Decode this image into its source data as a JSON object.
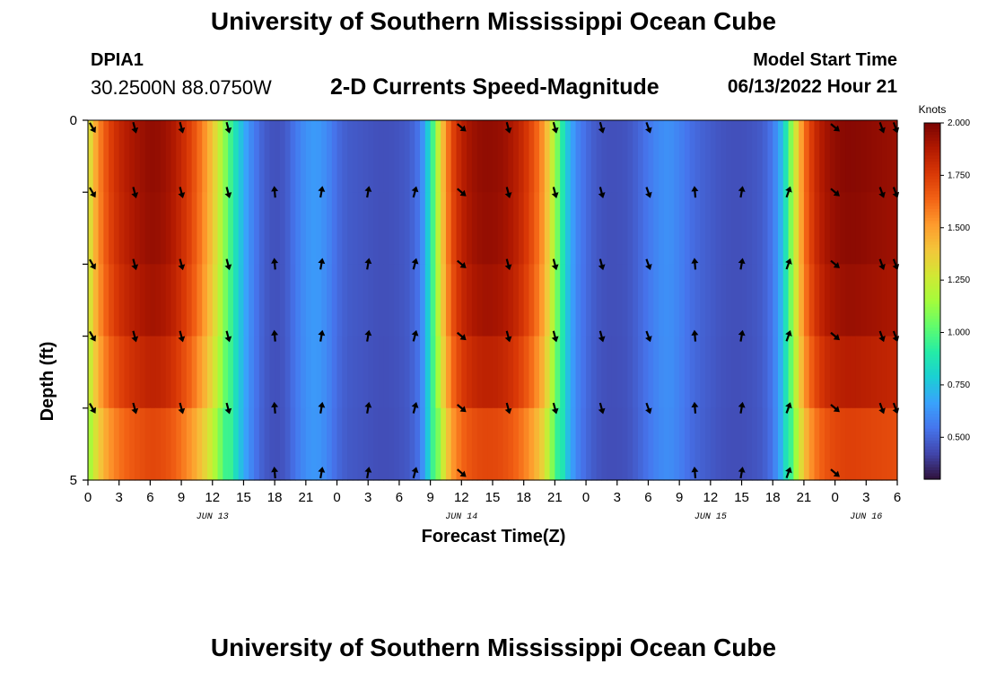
{
  "header": {
    "title": "University of Southern Mississippi Ocean Cube",
    "station_id": "DPIA1",
    "coordinates": "30.2500N  88.0750W",
    "chart_title": "2-D Currents Speed-Magnitude",
    "model_start_label": "Model Start Time",
    "model_start_value": "06/13/2022 Hour 21"
  },
  "footer": {
    "title": "University of Southern Mississippi Ocean Cube"
  },
  "chart_data": {
    "type": "heatmap",
    "title": "2-D Currents Speed-Magnitude",
    "xlabel": "Forecast Time(Z)",
    "ylabel": "Depth (ft)",
    "x_range_hours": [
      0,
      78
    ],
    "x_tick_hours": [
      0,
      3,
      6,
      9,
      12,
      15,
      18,
      21,
      24,
      27,
      30,
      33,
      36,
      39,
      42,
      45,
      48,
      51,
      54,
      57,
      60,
      63,
      66,
      69,
      72,
      75,
      78
    ],
    "x_tick_labels": [
      "0",
      "3",
      "6",
      "9",
      "12",
      "15",
      "18",
      "21",
      "0",
      "3",
      "6",
      "9",
      "12",
      "15",
      "18",
      "21",
      "0",
      "3",
      "6",
      "9",
      "12",
      "15",
      "18",
      "21",
      "0",
      "3",
      "6"
    ],
    "day_labels": [
      {
        "label": "JUN 13",
        "hour": 12
      },
      {
        "label": "JUN 14",
        "hour": 36
      },
      {
        "label": "JUN 15",
        "hour": 60
      },
      {
        "label": "JUN 16",
        "hour": 75
      }
    ],
    "y_range": [
      0,
      5
    ],
    "y_ticks": [
      {
        "value": 0,
        "label": "0"
      },
      {
        "value": 1
      },
      {
        "value": 2
      },
      {
        "value": 3
      },
      {
        "value": 4
      },
      {
        "value": 5,
        "label": "5"
      }
    ],
    "colorbar": {
      "title": "Knots",
      "min": 0.3,
      "max": 2.0,
      "ticks": [
        "2.000",
        "1.750",
        "1.500",
        "1.250",
        "1.000",
        "0.750",
        "0.500"
      ],
      "tick_values": [
        2.0,
        1.75,
        1.5,
        1.25,
        1.0,
        0.75,
        0.5
      ],
      "colors": [
        "#30123b",
        "#4145ab",
        "#4675ed",
        "#39a2fc",
        "#1bcfd4",
        "#24eca6",
        "#61fc6c",
        "#a4fc3b",
        "#d1e834",
        "#f3c63a",
        "#fe9b2d",
        "#f36315",
        "#d93806",
        "#b11901",
        "#7a0403"
      ]
    },
    "speed_profile_hours": [
      0,
      1,
      2,
      3,
      4,
      5,
      6,
      7,
      8,
      9,
      10,
      11,
      12,
      13,
      14,
      15,
      16,
      17,
      18,
      19,
      20,
      21,
      22,
      23,
      24,
      25,
      26,
      27,
      28,
      29,
      30,
      31,
      32,
      33,
      34,
      35,
      36,
      37,
      38,
      39,
      40,
      41,
      42,
      43,
      44,
      45,
      46,
      47,
      48,
      49,
      50,
      51,
      52,
      53,
      54,
      55,
      56,
      57,
      58,
      59,
      60,
      61,
      62,
      63,
      64,
      65,
      66,
      67,
      68,
      69,
      70,
      71,
      72,
      73,
      74,
      75,
      76,
      77,
      78
    ],
    "speed_profile_knots": [
      1.25,
      1.55,
      1.72,
      1.82,
      1.88,
      1.92,
      1.95,
      1.94,
      1.9,
      1.82,
      1.72,
      1.58,
      1.4,
      1.15,
      0.9,
      0.7,
      0.56,
      0.48,
      0.45,
      0.47,
      0.55,
      0.62,
      0.65,
      0.6,
      0.52,
      0.48,
      0.47,
      0.46,
      0.45,
      0.45,
      0.46,
      0.48,
      0.55,
      0.85,
      1.35,
      1.7,
      1.85,
      1.92,
      1.95,
      1.95,
      1.93,
      1.88,
      1.8,
      1.68,
      1.5,
      1.15,
      0.8,
      0.6,
      0.52,
      0.47,
      0.45,
      0.45,
      0.46,
      0.5,
      0.55,
      0.6,
      0.62,
      0.58,
      0.53,
      0.5,
      0.48,
      0.46,
      0.45,
      0.45,
      0.46,
      0.48,
      0.55,
      0.75,
      1.2,
      1.6,
      1.8,
      1.9,
      1.95,
      1.97,
      1.97,
      1.96,
      1.95,
      1.94,
      1.93
    ],
    "depth_rows": [
      0,
      1,
      2,
      3,
      4,
      5
    ],
    "depth_factor": [
      1.0,
      1.0,
      0.99,
      0.97,
      0.92,
      0.84
    ],
    "arrow_hours": [
      0,
      4.5,
      9,
      13.5,
      18,
      22.5,
      27,
      31.5,
      36,
      40.5,
      45,
      49.5,
      54,
      58.5,
      63,
      67.5,
      72,
      76.5,
      78
    ],
    "arrow_depths": [
      0,
      1,
      2,
      3,
      4,
      5
    ],
    "arrow_direction_deg": [
      150,
      165,
      165,
      165,
      -5,
      10,
      10,
      15,
      130,
      165,
      165,
      165,
      160,
      -5,
      10,
      20,
      130,
      160,
      160
    ],
    "arrow_present_at_surface": [
      true,
      true,
      true,
      true,
      false,
      false,
      false,
      false,
      true,
      true,
      true,
      true,
      true,
      false,
      false,
      false,
      true,
      true,
      true
    ],
    "arrow_present_at_bottom": [
      false,
      false,
      false,
      false,
      true,
      true,
      true,
      true,
      true,
      false,
      false,
      false,
      false,
      true,
      true,
      true,
      true,
      false,
      false
    ]
  }
}
